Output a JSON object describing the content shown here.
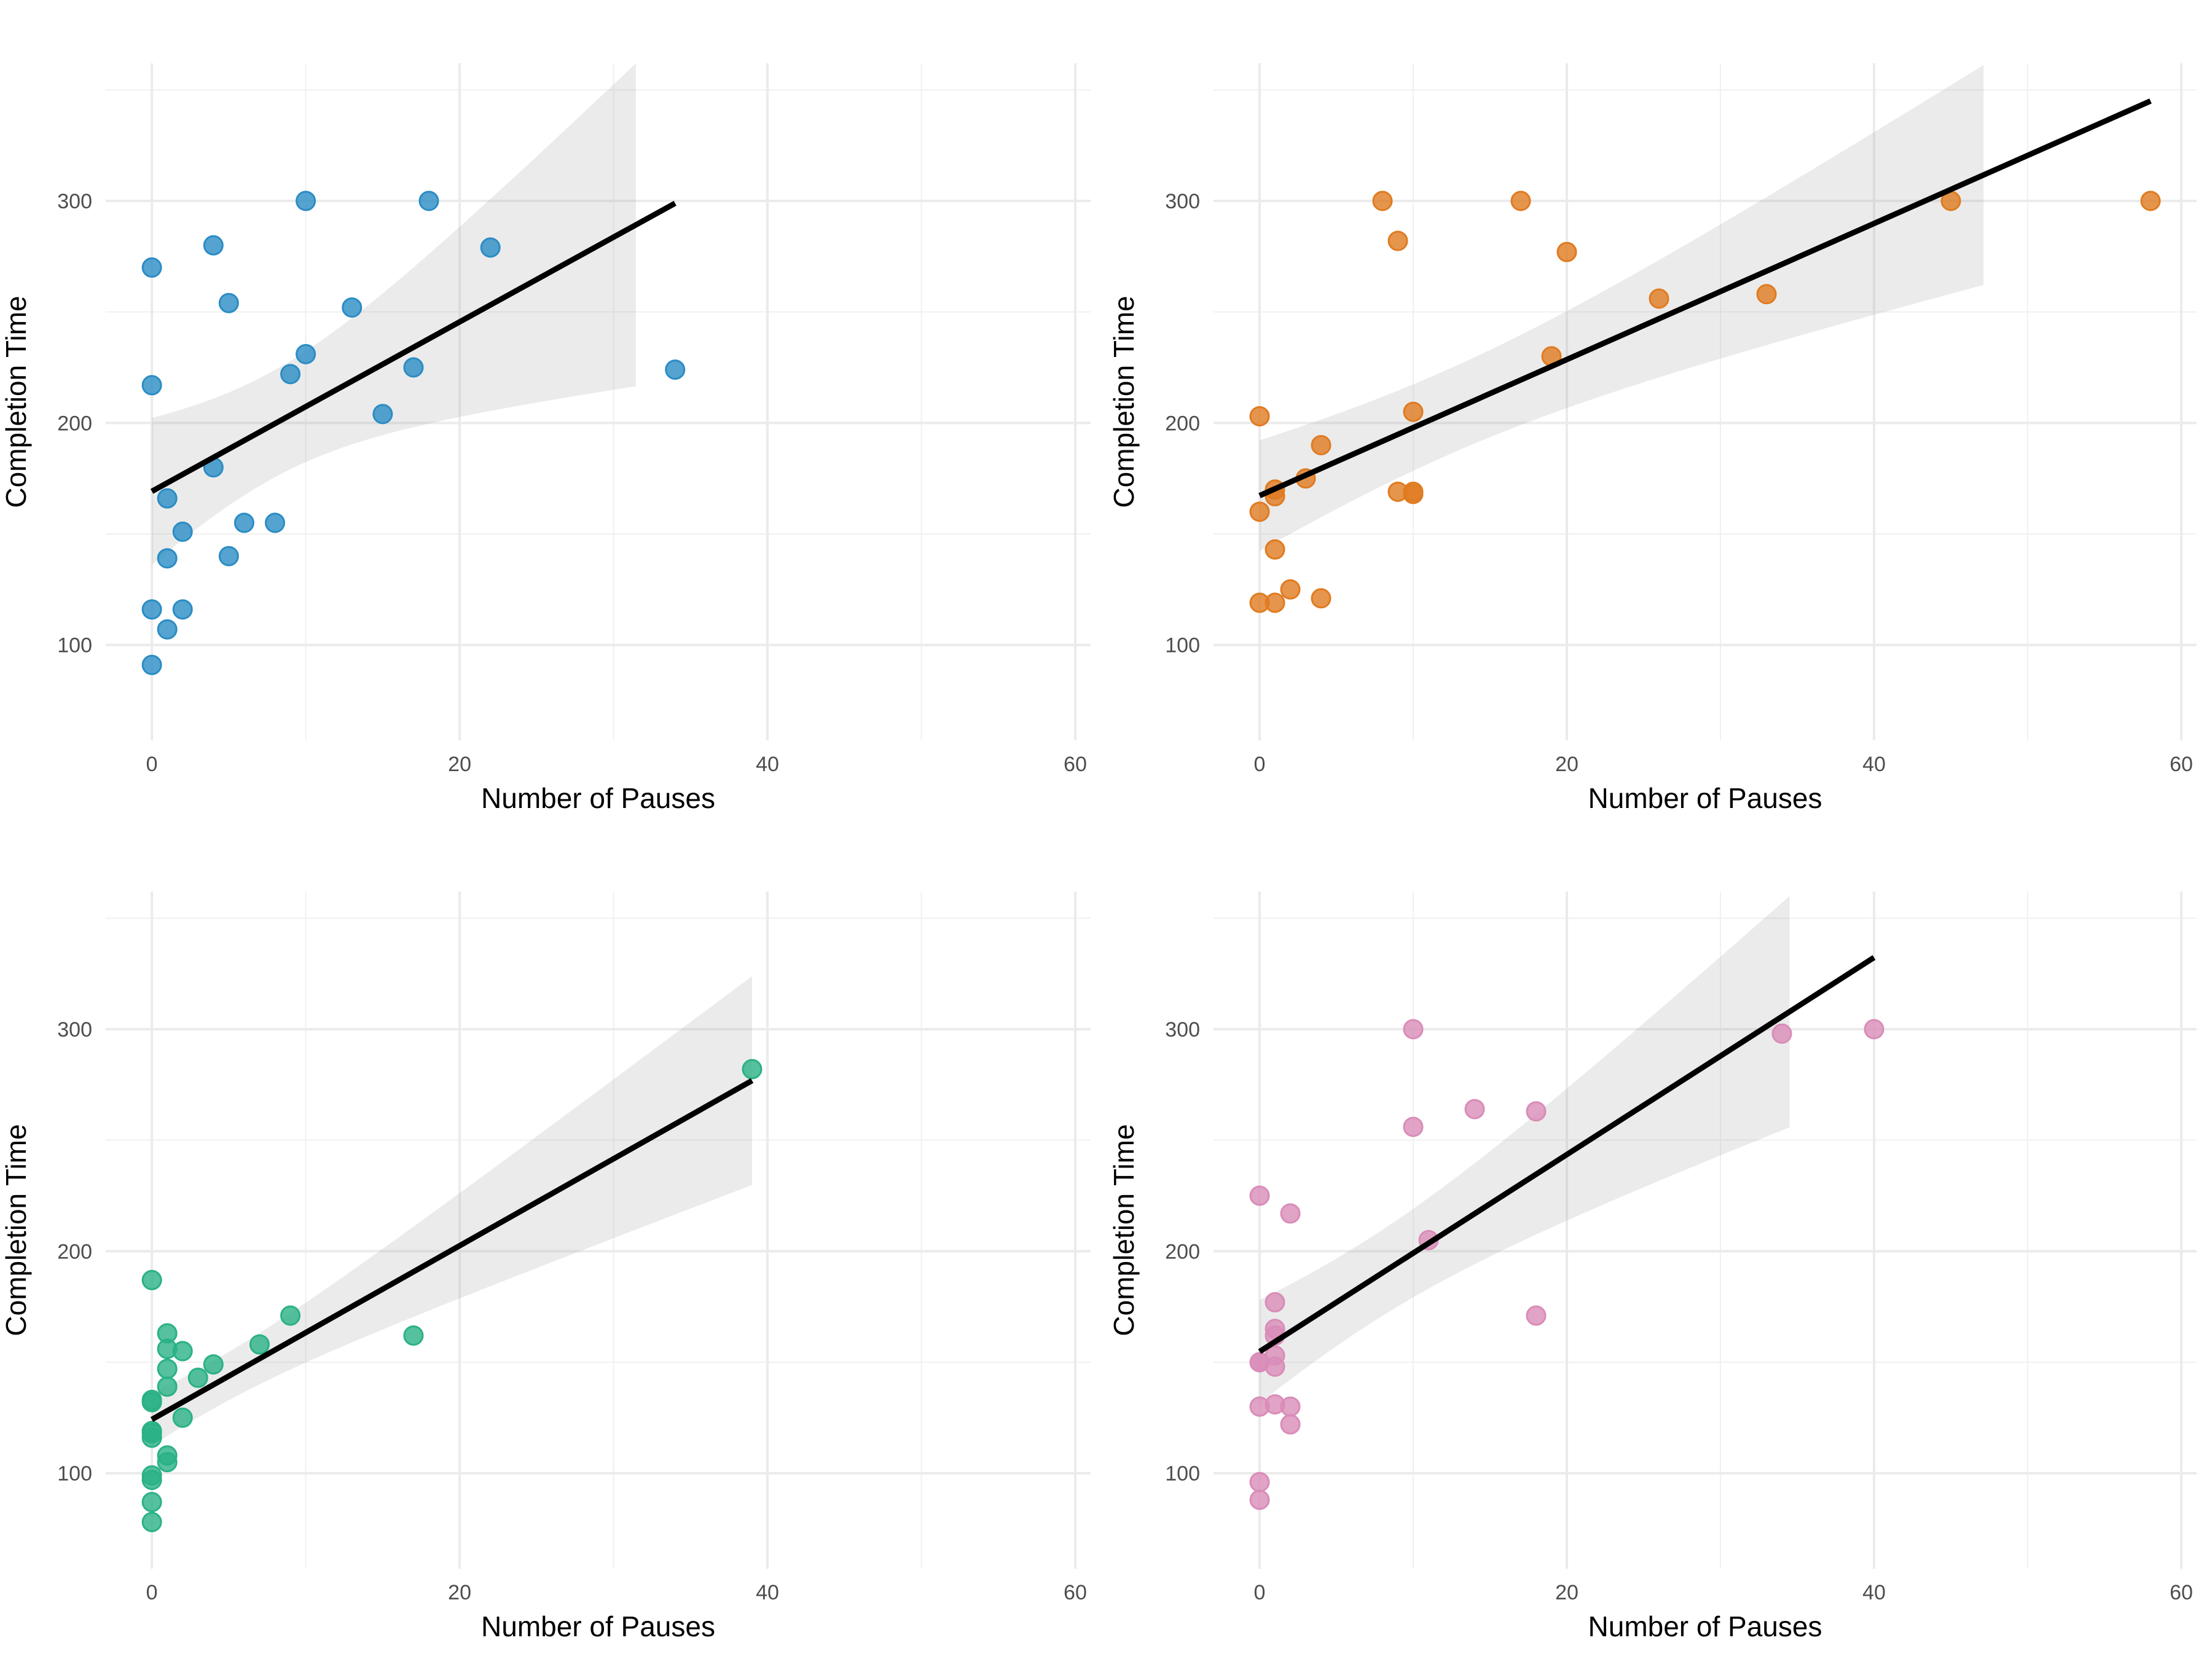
{
  "chart_data": [
    {
      "type": "scatter",
      "xlabel": "Number of Pauses",
      "ylabel": "Completion Time",
      "xlim": [
        -3,
        61
      ],
      "ylim": [
        57,
        362
      ],
      "xticks": [
        0,
        20,
        40,
        60
      ],
      "yticks": [
        100,
        200,
        300
      ],
      "grid": true,
      "trendline": "linear fit with 95% confidence band",
      "color": "#2b8cc4",
      "points": [
        [
          0,
          270
        ],
        [
          4,
          280
        ],
        [
          10,
          300
        ],
        [
          18,
          300
        ],
        [
          22,
          279
        ],
        [
          5,
          254
        ],
        [
          13,
          252
        ],
        [
          0,
          217
        ],
        [
          10,
          231
        ],
        [
          9,
          222
        ],
        [
          17,
          225
        ],
        [
          34,
          224
        ],
        [
          15,
          204
        ],
        [
          4,
          180
        ],
        [
          1,
          166
        ],
        [
          6,
          155
        ],
        [
          8,
          155
        ],
        [
          2,
          151
        ],
        [
          1,
          139
        ],
        [
          5,
          140
        ],
        [
          0,
          116
        ],
        [
          2,
          116
        ],
        [
          1,
          107
        ],
        [
          0,
          91
        ]
      ]
    },
    {
      "type": "scatter",
      "xlabel": "Number of Pauses",
      "ylabel": "Completion Time",
      "xlim": [
        -3,
        61
      ],
      "ylim": [
        57,
        362
      ],
      "xticks": [
        0,
        20,
        40,
        60
      ],
      "yticks": [
        100,
        200,
        300
      ],
      "grid": true,
      "trendline": "linear fit with 95% confidence band",
      "color": "#e07b20",
      "points": [
        [
          8,
          300
        ],
        [
          17,
          300
        ],
        [
          45,
          300
        ],
        [
          58,
          300
        ],
        [
          9,
          282
        ],
        [
          20,
          277
        ],
        [
          26,
          256
        ],
        [
          33,
          258
        ],
        [
          19,
          230
        ],
        [
          0,
          203
        ],
        [
          10,
          205
        ],
        [
          4,
          190
        ],
        [
          3,
          175
        ],
        [
          1,
          170
        ],
        [
          1,
          167
        ],
        [
          9,
          169
        ],
        [
          10,
          169
        ],
        [
          10,
          168
        ],
        [
          0,
          160
        ],
        [
          1,
          143
        ],
        [
          2,
          125
        ],
        [
          4,
          121
        ],
        [
          0,
          119
        ],
        [
          1,
          119
        ]
      ]
    },
    {
      "type": "scatter",
      "xlabel": "Number of Pauses",
      "ylabel": "Completion Time",
      "xlim": [
        -3,
        61
      ],
      "ylim": [
        57,
        362
      ],
      "xticks": [
        0,
        20,
        40,
        60
      ],
      "yticks": [
        100,
        200,
        300
      ],
      "grid": true,
      "trendline": "linear fit with 95% confidence band",
      "color": "#2ab186",
      "points": [
        [
          39,
          282
        ],
        [
          0,
          187
        ],
        [
          9,
          171
        ],
        [
          1,
          163
        ],
        [
          17,
          162
        ],
        [
          7,
          158
        ],
        [
          1,
          156
        ],
        [
          2,
          155
        ],
        [
          4,
          149
        ],
        [
          1,
          147
        ],
        [
          3,
          143
        ],
        [
          1,
          139
        ],
        [
          0,
          133
        ],
        [
          0,
          132
        ],
        [
          2,
          125
        ],
        [
          0,
          119
        ],
        [
          0,
          118
        ],
        [
          0,
          116
        ],
        [
          1,
          108
        ],
        [
          1,
          105
        ],
        [
          0,
          99
        ],
        [
          0,
          97
        ],
        [
          0,
          87
        ],
        [
          0,
          78
        ]
      ]
    },
    {
      "type": "scatter",
      "xlabel": "Number of Pauses",
      "ylabel": "Completion Time",
      "xlim": [
        -3,
        61
      ],
      "ylim": [
        57,
        362
      ],
      "xticks": [
        0,
        20,
        40,
        60
      ],
      "yticks": [
        100,
        200,
        300
      ],
      "grid": true,
      "trendline": "linear fit with 95% confidence band",
      "color": "#d98cb8",
      "points": [
        [
          10,
          300
        ],
        [
          40,
          300
        ],
        [
          34,
          298
        ],
        [
          14,
          264
        ],
        [
          18,
          263
        ],
        [
          10,
          256
        ],
        [
          0,
          225
        ],
        [
          2,
          217
        ],
        [
          11,
          205
        ],
        [
          18,
          171
        ],
        [
          1,
          177
        ],
        [
          1,
          165
        ],
        [
          1,
          162
        ],
        [
          1,
          153
        ],
        [
          0,
          150
        ],
        [
          0,
          150
        ],
        [
          1,
          148
        ],
        [
          0,
          130
        ],
        [
          1,
          131
        ],
        [
          2,
          130
        ],
        [
          2,
          122
        ],
        [
          0,
          96
        ],
        [
          0,
          88
        ]
      ]
    }
  ]
}
